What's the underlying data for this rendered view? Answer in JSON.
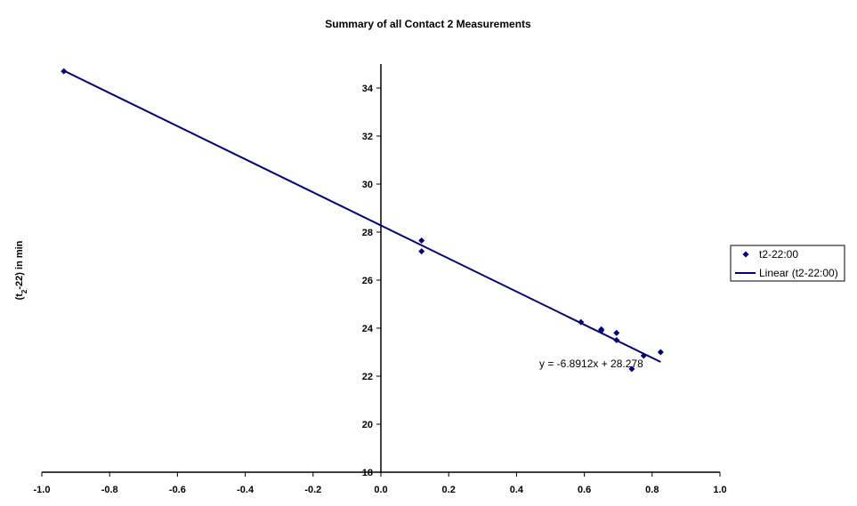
{
  "chart_data": {
    "type": "scatter",
    "title": "Summary of all Contact 2 Measurements",
    "xlabel": "",
    "ylabel_prefix": "(t",
    "ylabel_sub": "2",
    "ylabel_suffix": "-22) in min",
    "xlim": [
      -1.0,
      1.0
    ],
    "ylim": [
      18,
      35
    ],
    "xticks": [
      "-1.0",
      "-0.8",
      "-0.6",
      "-0.4",
      "-0.2",
      "0.0",
      "0.2",
      "0.4",
      "0.6",
      "0.8",
      "1.0"
    ],
    "xtick_values": [
      -1.0,
      -0.8,
      -0.6,
      -0.4,
      -0.2,
      0.0,
      0.2,
      0.4,
      0.6,
      0.8,
      1.0
    ],
    "yticks": [
      "18",
      "20",
      "22",
      "24",
      "26",
      "28",
      "30",
      "32",
      "34"
    ],
    "ytick_values": [
      18,
      20,
      22,
      24,
      26,
      28,
      30,
      32,
      34
    ],
    "grid": false,
    "legend_position": "right",
    "series": [
      {
        "name": "t2-22:00",
        "marker": "diamond",
        "color": "#000080",
        "x": [
          -0.935,
          0.12,
          0.12,
          0.59,
          0.65,
          0.65,
          0.695,
          0.695,
          0.74,
          0.775,
          0.825
        ],
        "y": [
          34.7,
          27.65,
          27.2,
          24.25,
          23.95,
          23.9,
          23.8,
          23.5,
          22.3,
          22.85,
          23.0
        ]
      }
    ],
    "trendline": {
      "name": "Linear (t2-22:00)",
      "type": "linear",
      "color": "#000080",
      "slope": -6.8912,
      "intercept": 28.278,
      "x_range": [
        -0.935,
        0.825
      ],
      "equation_label": "y = -6.8912x + 28.278"
    }
  }
}
